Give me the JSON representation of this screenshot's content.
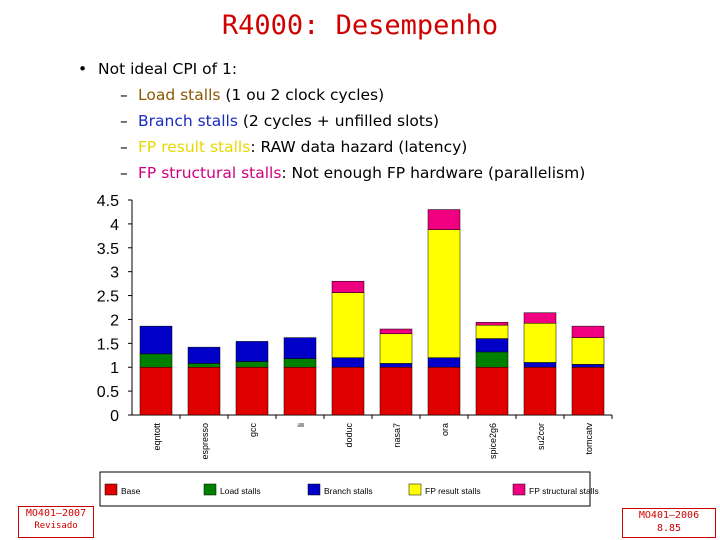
{
  "title": "R4000: Desempenho",
  "bullets": {
    "main_marker": "•",
    "main": "Not ideal CPI of 1:",
    "items": [
      {
        "dash": "–",
        "name": "Load stalls",
        "desc": " (1 ou 2 clock cycles)",
        "color": "#8a5a00"
      },
      {
        "dash": "–",
        "name": "Branch stalls",
        "desc": " (2 cycles + unfilled slots)",
        "color": "#1a2cc0"
      },
      {
        "dash": "–",
        "name": "FP result stalls",
        "desc": ": RAW data hazard (latency)",
        "color": "#e8d800"
      },
      {
        "dash": "–",
        "name": "FP structural stalls",
        "desc": ": Not enough FP hardware (parallelism)",
        "color": "#d00080"
      }
    ]
  },
  "chart_data": {
    "type": "bar",
    "stacked": true,
    "categories": [
      "eqntott",
      "espresso",
      "gcc",
      "li",
      "doduc",
      "nasa7",
      "ora",
      "spice2g6",
      "su2cor",
      "tomcatv"
    ],
    "ylim": [
      0,
      4.5
    ],
    "yticks": [
      "0",
      "0.5",
      "1",
      "1.5",
      "2",
      "2.5",
      "3",
      "3.5",
      "4",
      "4.5"
    ],
    "grid": false,
    "legend_position": "bottom",
    "series": [
      {
        "name": "Base",
        "color": "#e00000",
        "values": [
          1.0,
          1.0,
          1.0,
          1.0,
          1.0,
          1.0,
          1.0,
          1.0,
          1.0,
          1.0
        ]
      },
      {
        "name": "Load stalls",
        "color": "#008000",
        "values": [
          0.28,
          0.08,
          0.12,
          0.18,
          0.0,
          0.0,
          0.0,
          0.32,
          0.0,
          0.0
        ]
      },
      {
        "name": "Branch stalls",
        "color": "#0000c8",
        "values": [
          0.58,
          0.34,
          0.42,
          0.44,
          0.2,
          0.08,
          0.2,
          0.28,
          0.1,
          0.06
        ]
      },
      {
        "name": "FP result stalls",
        "color": "#ffff00",
        "values": [
          0.0,
          0.0,
          0.0,
          0.0,
          1.36,
          0.62,
          2.68,
          0.28,
          0.82,
          0.56
        ]
      },
      {
        "name": "FP structural stalls",
        "color": "#f00080",
        "values": [
          0.0,
          0.0,
          0.0,
          0.0,
          0.24,
          0.1,
          0.42,
          0.06,
          0.22,
          0.24
        ]
      }
    ]
  },
  "footer_left": {
    "line1": "MO401–2007",
    "line2": "Revisado"
  },
  "footer_right": {
    "line1": "MO401–2006",
    "line2": "8.85"
  }
}
